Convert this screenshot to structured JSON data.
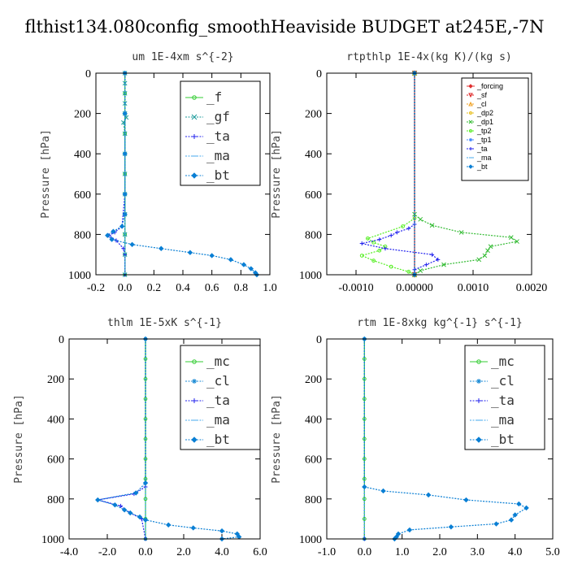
{
  "figure": {
    "title": "flthist134.080config_smoothHeaviside  BUDGET at245E,-7N"
  },
  "chart_data": [
    {
      "type": "line",
      "title": "um  1E-4xm s^{-2}",
      "ylabel": "Pressure [hPa]",
      "xlim": [
        -0.2,
        1.0
      ],
      "ylim": [
        1000,
        0
      ],
      "xticks": [
        -0.2,
        0.0,
        0.2,
        0.4,
        0.6,
        0.8,
        1.0
      ],
      "xtick_labels": [
        "-0.2",
        "0.0",
        "0.2",
        "0.4",
        "0.6",
        "0.8",
        "1.0"
      ],
      "yticks": [
        0,
        200,
        400,
        600,
        800,
        1000
      ],
      "ytick_labels": [
        "0",
        "200",
        "400",
        "600",
        "800",
        "1000"
      ],
      "legend_style": "large",
      "series": [
        {
          "name": "_f",
          "color": "#33cc33",
          "marker": "circle",
          "points": [
            [
              0,
              0
            ],
            [
              0,
              100
            ],
            [
              0,
              200
            ],
            [
              0,
              300
            ],
            [
              0,
              400
            ],
            [
              0,
              500
            ],
            [
              0,
              600
            ],
            [
              0,
              700
            ],
            [
              0,
              800
            ],
            [
              0,
              900
            ],
            [
              0,
              1000
            ]
          ]
        },
        {
          "name": "_gf",
          "color": "#1a9a9a",
          "marker": "cross",
          "points": [
            [
              0,
              0
            ],
            [
              0,
              50
            ],
            [
              0,
              100
            ],
            [
              0,
              150
            ],
            [
              0,
              200
            ],
            [
              0.01,
              220
            ],
            [
              -0.01,
              245
            ],
            [
              0,
              300
            ],
            [
              0,
              400
            ],
            [
              0,
              500
            ],
            [
              0,
              600
            ],
            [
              0,
              700
            ],
            [
              0,
              800
            ],
            [
              0,
              900
            ],
            [
              0,
              1000
            ]
          ]
        },
        {
          "name": "_ta",
          "color": "#2222ee",
          "marker": "plus",
          "points": [
            [
              0,
              0
            ],
            [
              0,
              600
            ],
            [
              -0.02,
              760
            ],
            [
              -0.07,
              790
            ],
            [
              -0.11,
              805
            ],
            [
              -0.06,
              830
            ],
            [
              -0.01,
              870
            ],
            [
              0,
              900
            ],
            [
              0,
              1000
            ]
          ]
        },
        {
          "name": "_ma",
          "color": "#44aaee",
          "marker": "dash",
          "points": [
            [
              0,
              0
            ],
            [
              0,
              1000
            ]
          ]
        },
        {
          "name": "_bt",
          "color": "#0a7fd4",
          "marker": "diamond",
          "points": [
            [
              0,
              0
            ],
            [
              0,
              200
            ],
            [
              0,
              400
            ],
            [
              0,
              600
            ],
            [
              0,
              700
            ],
            [
              -0.02,
              760
            ],
            [
              -0.08,
              785
            ],
            [
              -0.12,
              805
            ],
            [
              -0.09,
              825
            ],
            [
              0.05,
              850
            ],
            [
              0.25,
              870
            ],
            [
              0.45,
              890
            ],
            [
              0.6,
              905
            ],
            [
              0.73,
              925
            ],
            [
              0.82,
              950
            ],
            [
              0.87,
              970
            ],
            [
              0.9,
              990
            ],
            [
              0.91,
              1000
            ]
          ]
        }
      ]
    },
    {
      "type": "line",
      "title": "rtpthlp  1E-4x(kg K)/(kg s)",
      "ylabel": "Pressure [hPa]",
      "xlim": [
        -0.0015,
        0.002
      ],
      "ylim": [
        1000,
        0
      ],
      "xticks": [
        -0.001,
        0.0,
        0.001,
        0.002
      ],
      "xtick_labels": [
        "-0.0010",
        "0.00000",
        "0.0010",
        "0.0020"
      ],
      "yticks": [
        0,
        200,
        400,
        600,
        800,
        1000
      ],
      "ytick_labels": [
        "0",
        "200",
        "400",
        "600",
        "800",
        "1000"
      ],
      "legend_style": "small",
      "series": [
        {
          "name": "_forcing",
          "color": "#e03030",
          "marker": "diamond",
          "points": [
            [
              0,
              0
            ],
            [
              0,
              1000
            ]
          ]
        },
        {
          "name": "_sf",
          "color": "#dd2222",
          "marker": "triangle-down",
          "points": [
            [
              0,
              0
            ],
            [
              0,
              1000
            ]
          ]
        },
        {
          "name": "_cl",
          "color": "#f0a020",
          "marker": "triangle",
          "points": [
            [
              0,
              0
            ],
            [
              0,
              1000
            ]
          ]
        },
        {
          "name": "_dp2",
          "color": "#e8c020",
          "marker": "circle",
          "points": [
            [
              0,
              0
            ],
            [
              0,
              1000
            ]
          ]
        },
        {
          "name": "_dp1",
          "color": "#33bb33",
          "marker": "cross",
          "points": [
            [
              0,
              0
            ],
            [
              0,
              700
            ],
            [
              0.0001,
              725
            ],
            [
              0.0003,
              755
            ],
            [
              0.0008,
              790
            ],
            [
              0.00165,
              815
            ],
            [
              0.00175,
              835
            ],
            [
              0.0013,
              860
            ],
            [
              0.00125,
              880
            ],
            [
              0.0012,
              905
            ],
            [
              0.0011,
              925
            ],
            [
              0.0005,
              950
            ],
            [
              0.0001,
              980
            ],
            [
              0,
              1000
            ]
          ]
        },
        {
          "name": "_tp2",
          "color": "#55ee22",
          "marker": "circle",
          "points": [
            [
              0,
              0
            ],
            [
              0,
              720
            ],
            [
              -0.0002,
              760
            ],
            [
              -0.0008,
              820
            ],
            [
              -0.0007,
              840
            ],
            [
              -0.0005,
              860
            ],
            [
              -0.0006,
              880
            ],
            [
              -0.0009,
              905
            ],
            [
              -0.0007,
              930
            ],
            [
              -0.0004,
              960
            ],
            [
              -0.0001,
              985
            ],
            [
              0,
              1000
            ]
          ]
        },
        {
          "name": "_tp1",
          "color": "#4488ff",
          "marker": "asterisk",
          "points": [
            [
              0,
              0
            ],
            [
              0,
              1000
            ]
          ]
        },
        {
          "name": "_ta",
          "color": "#2222ee",
          "marker": "plus",
          "points": [
            [
              0,
              0
            ],
            [
              0,
              750
            ],
            [
              -0.0001,
              770
            ],
            [
              -0.0003,
              790
            ],
            [
              -0.0004,
              805
            ],
            [
              -0.0006,
              825
            ],
            [
              -0.0009,
              845
            ],
            [
              -0.0005,
              870
            ],
            [
              0.0003,
              900
            ],
            [
              0.0004,
              925
            ],
            [
              0.0002,
              950
            ],
            [
              0,
              975
            ],
            [
              0,
              1000
            ]
          ]
        },
        {
          "name": "_ma",
          "color": "#44aaee",
          "marker": "dash",
          "points": [
            [
              0,
              0
            ],
            [
              0,
              1000
            ]
          ]
        },
        {
          "name": "_bt",
          "color": "#0a7fd4",
          "marker": "diamond",
          "points": [
            [
              0,
              0
            ],
            [
              0,
              1000
            ]
          ]
        }
      ]
    },
    {
      "type": "line",
      "title": "thlm  1E-5xK s^{-1}",
      "ylabel": "Pressure [hPa]",
      "xlim": [
        -4.0,
        6.0
      ],
      "ylim": [
        1000,
        0
      ],
      "xticks": [
        -4.0,
        -2.0,
        0.0,
        2.0,
        4.0,
        6.0
      ],
      "xtick_labels": [
        "-4.0",
        "-2.0",
        "0.0",
        "2.0",
        "4.0",
        "6.0"
      ],
      "yticks": [
        0,
        200,
        400,
        600,
        800,
        1000
      ],
      "ytick_labels": [
        "0",
        "200",
        "400",
        "600",
        "800",
        "1000"
      ],
      "legend_style": "large",
      "series": [
        {
          "name": "_mc",
          "color": "#33cc33",
          "marker": "circle",
          "points": [
            [
              0,
              0
            ],
            [
              0,
              100
            ],
            [
              0,
              200
            ],
            [
              0,
              300
            ],
            [
              0,
              400
            ],
            [
              0,
              500
            ],
            [
              0,
              600
            ],
            [
              0,
              700
            ],
            [
              0,
              800
            ],
            [
              0,
              900
            ],
            [
              0,
              1000
            ]
          ]
        },
        {
          "name": "_cl",
          "color": "#1a8ad4",
          "marker": "asterisk",
          "points": [
            [
              0,
              0
            ],
            [
              0,
              1000
            ]
          ]
        },
        {
          "name": "_ta",
          "color": "#2222ee",
          "marker": "plus",
          "points": [
            [
              0,
              0
            ],
            [
              0,
              740
            ],
            [
              -0.6,
              775
            ],
            [
              -2.5,
              805
            ],
            [
              -1.3,
              835
            ],
            [
              -0.8,
              870
            ],
            [
              -0.2,
              900
            ],
            [
              0,
              1000
            ]
          ]
        },
        {
          "name": "_ma",
          "color": "#44aaee",
          "marker": "dash",
          "points": [
            [
              0,
              0
            ],
            [
              0,
              1000
            ]
          ]
        },
        {
          "name": "_bt",
          "color": "#0a7fd4",
          "marker": "diamond",
          "points": [
            [
              0,
              0
            ],
            [
              0,
              720
            ],
            [
              -0.5,
              770
            ],
            [
              -2.5,
              805
            ],
            [
              -1.6,
              830
            ],
            [
              -1.1,
              855
            ],
            [
              -0.8,
              870
            ],
            [
              -0.3,
              890
            ],
            [
              0,
              905
            ],
            [
              1.2,
              930
            ],
            [
              2.5,
              945
            ],
            [
              4.0,
              960
            ],
            [
              4.8,
              975
            ],
            [
              4.9,
              990
            ],
            [
              4.0,
              1000
            ]
          ]
        }
      ]
    },
    {
      "type": "line",
      "title": "rtm  1E-8xkg kg^{-1} s^{-1}",
      "ylabel": "Pressure [hPa]",
      "xlim": [
        -1.0,
        5.0
      ],
      "ylim": [
        1000,
        0
      ],
      "xticks": [
        -1.0,
        0.0,
        1.0,
        2.0,
        3.0,
        4.0,
        5.0
      ],
      "xtick_labels": [
        "-1.0",
        "0.0",
        "1.0",
        "2.0",
        "3.0",
        "4.0",
        "5.0"
      ],
      "yticks": [
        0,
        200,
        400,
        600,
        800,
        1000
      ],
      "ytick_labels": [
        "0",
        "200",
        "400",
        "600",
        "800",
        "1000"
      ],
      "legend_style": "large",
      "series": [
        {
          "name": "_mc",
          "color": "#33cc33",
          "marker": "circle",
          "points": [
            [
              0,
              0
            ],
            [
              0,
              100
            ],
            [
              0,
              200
            ],
            [
              0,
              300
            ],
            [
              0,
              400
            ],
            [
              0,
              500
            ],
            [
              0,
              600
            ],
            [
              0,
              700
            ],
            [
              0,
              800
            ],
            [
              0,
              900
            ],
            [
              0,
              1000
            ]
          ]
        },
        {
          "name": "_cl",
          "color": "#1a8ad4",
          "marker": "asterisk",
          "points": [
            [
              0,
              0
            ],
            [
              0,
              1000
            ]
          ]
        },
        {
          "name": "_ta",
          "color": "#2222ee",
          "marker": "plus",
          "points": [
            [
              0,
              0
            ],
            [
              0,
              1000
            ]
          ]
        },
        {
          "name": "_ma",
          "color": "#44aaee",
          "marker": "dash",
          "points": [
            [
              0,
              0
            ],
            [
              0,
              1000
            ]
          ]
        },
        {
          "name": "_bt",
          "color": "#0a7fd4",
          "marker": "diamond",
          "points": [
            [
              0,
              0
            ],
            [
              0,
              740
            ],
            [
              0.5,
              760
            ],
            [
              1.7,
              780
            ],
            [
              2.7,
              805
            ],
            [
              4.1,
              825
            ],
            [
              4.3,
              845
            ],
            [
              4.0,
              880
            ],
            [
              3.9,
              905
            ],
            [
              3.5,
              925
            ],
            [
              2.3,
              940
            ],
            [
              1.2,
              955
            ],
            [
              0.9,
              975
            ],
            [
              0.85,
              990
            ],
            [
              0.8,
              1000
            ]
          ]
        }
      ]
    }
  ]
}
